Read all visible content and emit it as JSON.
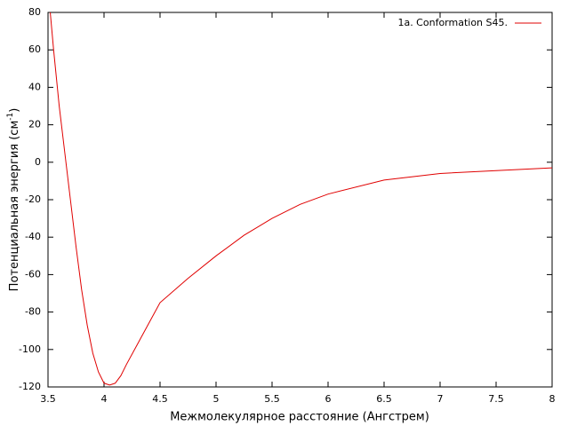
{
  "chart_data": {
    "type": "line",
    "xlabel": "Межмолекулярное расстояние (Ангстрем)",
    "ylabel_parts": [
      "Потенциальная энергия (см",
      "-1",
      ")"
    ],
    "x": [
      3.52,
      3.55,
      3.6,
      3.65,
      3.7,
      3.75,
      3.8,
      3.85,
      3.9,
      3.95,
      4.0,
      4.05,
      4.1,
      4.15,
      4.2,
      4.3,
      4.4,
      4.5,
      4.75,
      5.0,
      5.25,
      5.5,
      5.75,
      6.0,
      6.5,
      7.0,
      7.5,
      8.0
    ],
    "series": [
      {
        "name": "1a. Conformation S45.",
        "color": "#e00000",
        "values": [
          80,
          60,
          30,
          5,
          -20,
          -45,
          -68,
          -87,
          -102,
          -112,
          -118,
          -119,
          -118,
          -114,
          -108,
          -97,
          -86,
          -75,
          -62,
          -50,
          -39,
          -30,
          -22.5,
          -17,
          -9.5,
          -6,
          -4.5,
          -3
        ]
      }
    ],
    "xlim": [
      3.5,
      8
    ],
    "xticks": [
      3.5,
      4,
      4.5,
      5,
      5.5,
      6,
      6.5,
      7,
      7.5,
      8
    ],
    "ylim": [
      -120,
      80
    ],
    "yticks": [
      -120,
      -100,
      -80,
      -60,
      -40,
      -20,
      0,
      20,
      40,
      60,
      80
    ],
    "legend": "top-right"
  }
}
